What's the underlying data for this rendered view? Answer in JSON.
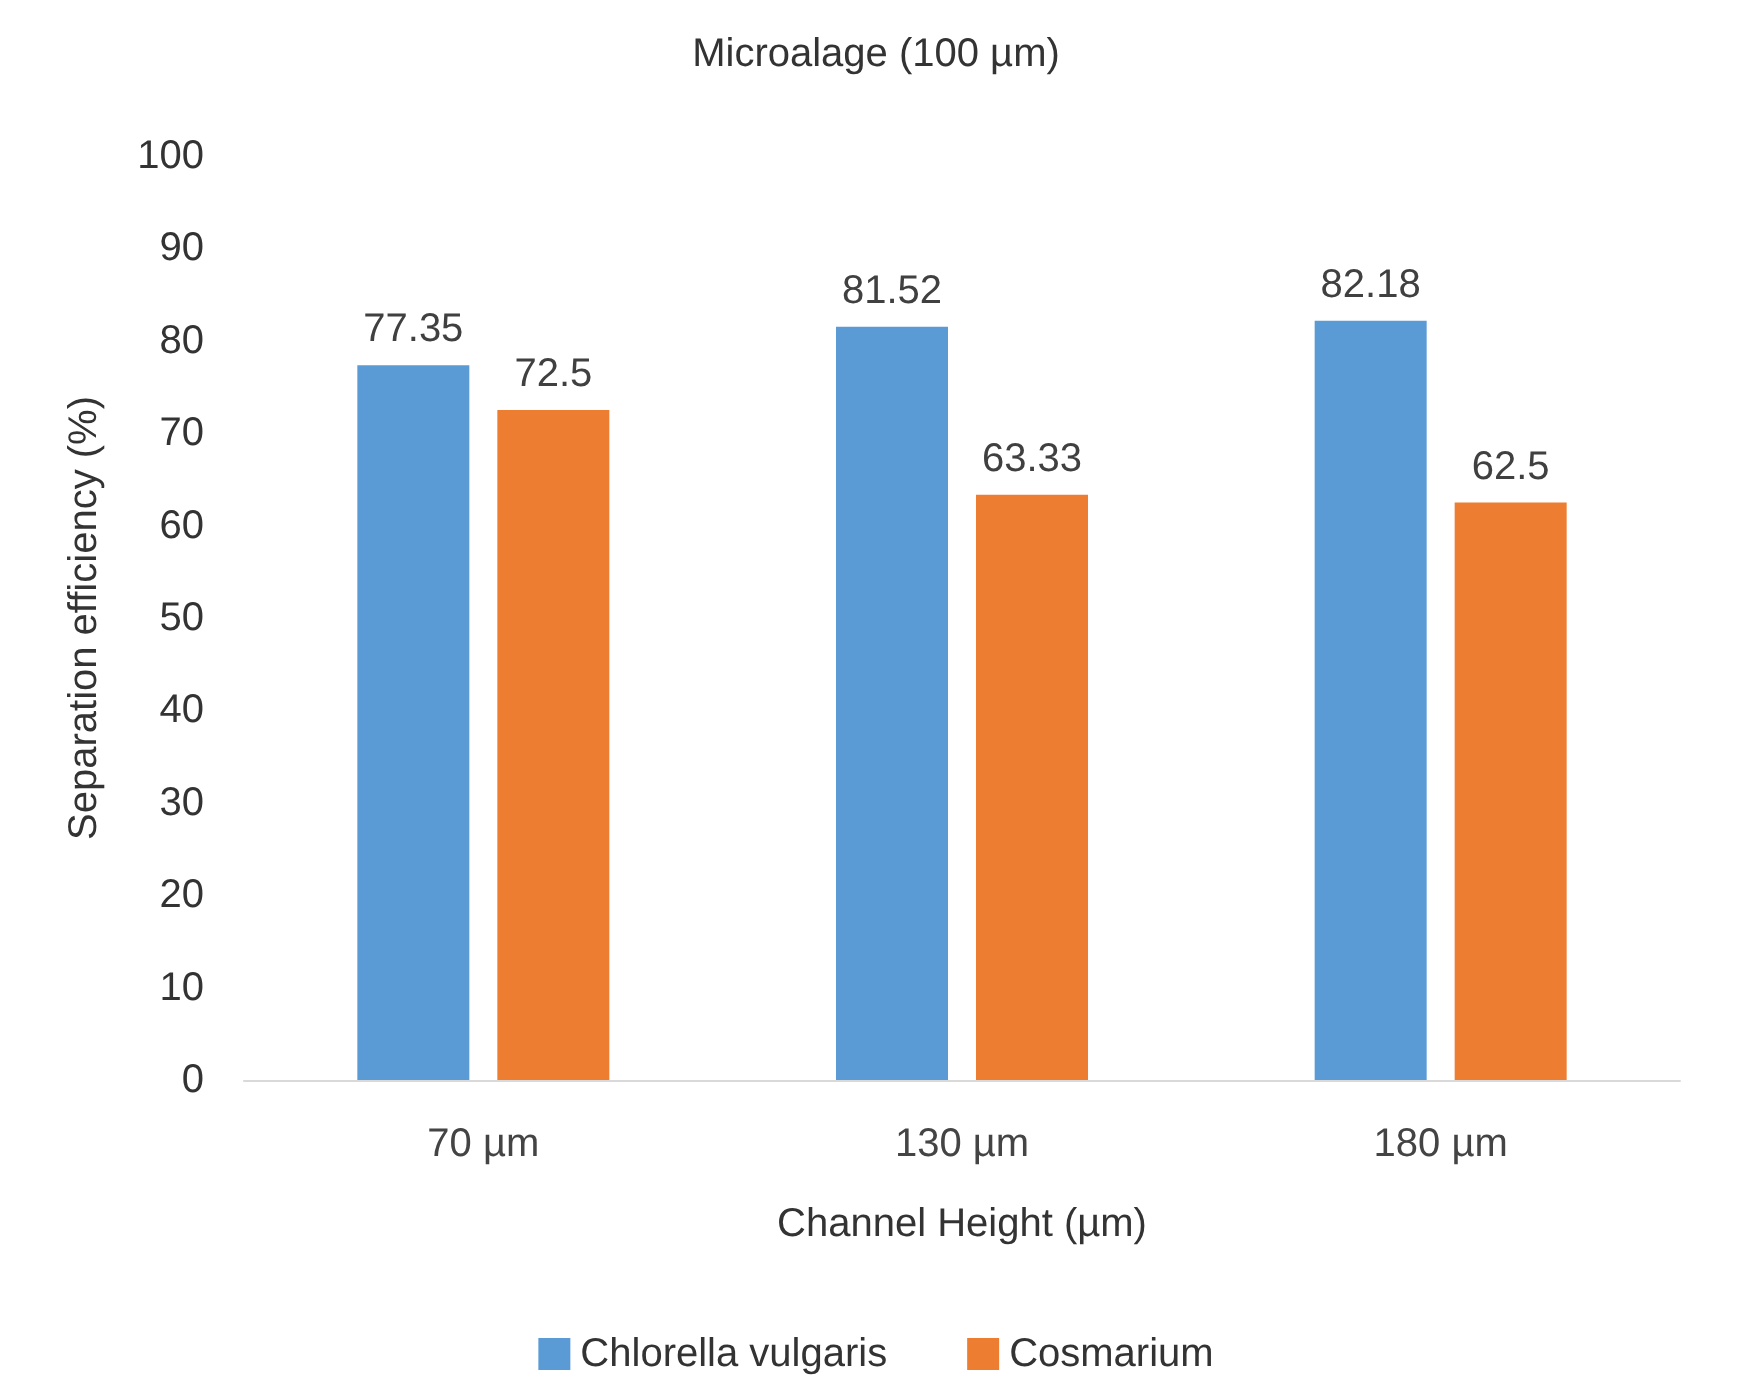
{
  "chart_data": {
    "type": "bar",
    "title": "Microalage (100 µm)",
    "xlabel": "Channel Height (µm)",
    "ylabel": "Separation efficiency (%)",
    "categories": [
      "70 µm",
      "130 µm",
      "180 µm"
    ],
    "series": [
      {
        "name": "Chlorella vulgaris",
        "color": "#5b9bd5",
        "values": [
          77.35,
          81.52,
          82.18
        ]
      },
      {
        "name": "Cosmarium",
        "color": "#ed7d31",
        "values": [
          72.5,
          63.33,
          62.5
        ]
      }
    ],
    "ylim": [
      0,
      100
    ],
    "yticks": [
      0,
      10,
      20,
      30,
      40,
      50,
      60,
      70,
      80,
      90,
      100
    ],
    "grid": false,
    "legend": "bottom",
    "data_labels": true
  }
}
